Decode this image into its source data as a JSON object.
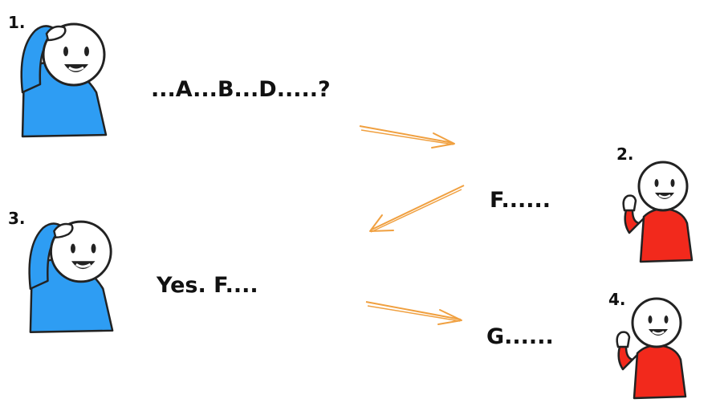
{
  "steps": [
    {
      "number": "1.",
      "speech": "...A...B...D.....?"
    },
    {
      "number": "2.",
      "speech": "F......"
    },
    {
      "number": "3.",
      "speech": "Yes. F...."
    },
    {
      "number": "4.",
      "speech": "G......"
    }
  ],
  "colors": {
    "asker_shirt": "#2e9df3",
    "responder_shirt": "#f2291c",
    "arrow": "#f0a040",
    "outline": "#222222"
  },
  "icons": {
    "asker": "person-scratching-head-icon",
    "responder": "person-waving-icon",
    "arrow": "arrow-icon"
  }
}
